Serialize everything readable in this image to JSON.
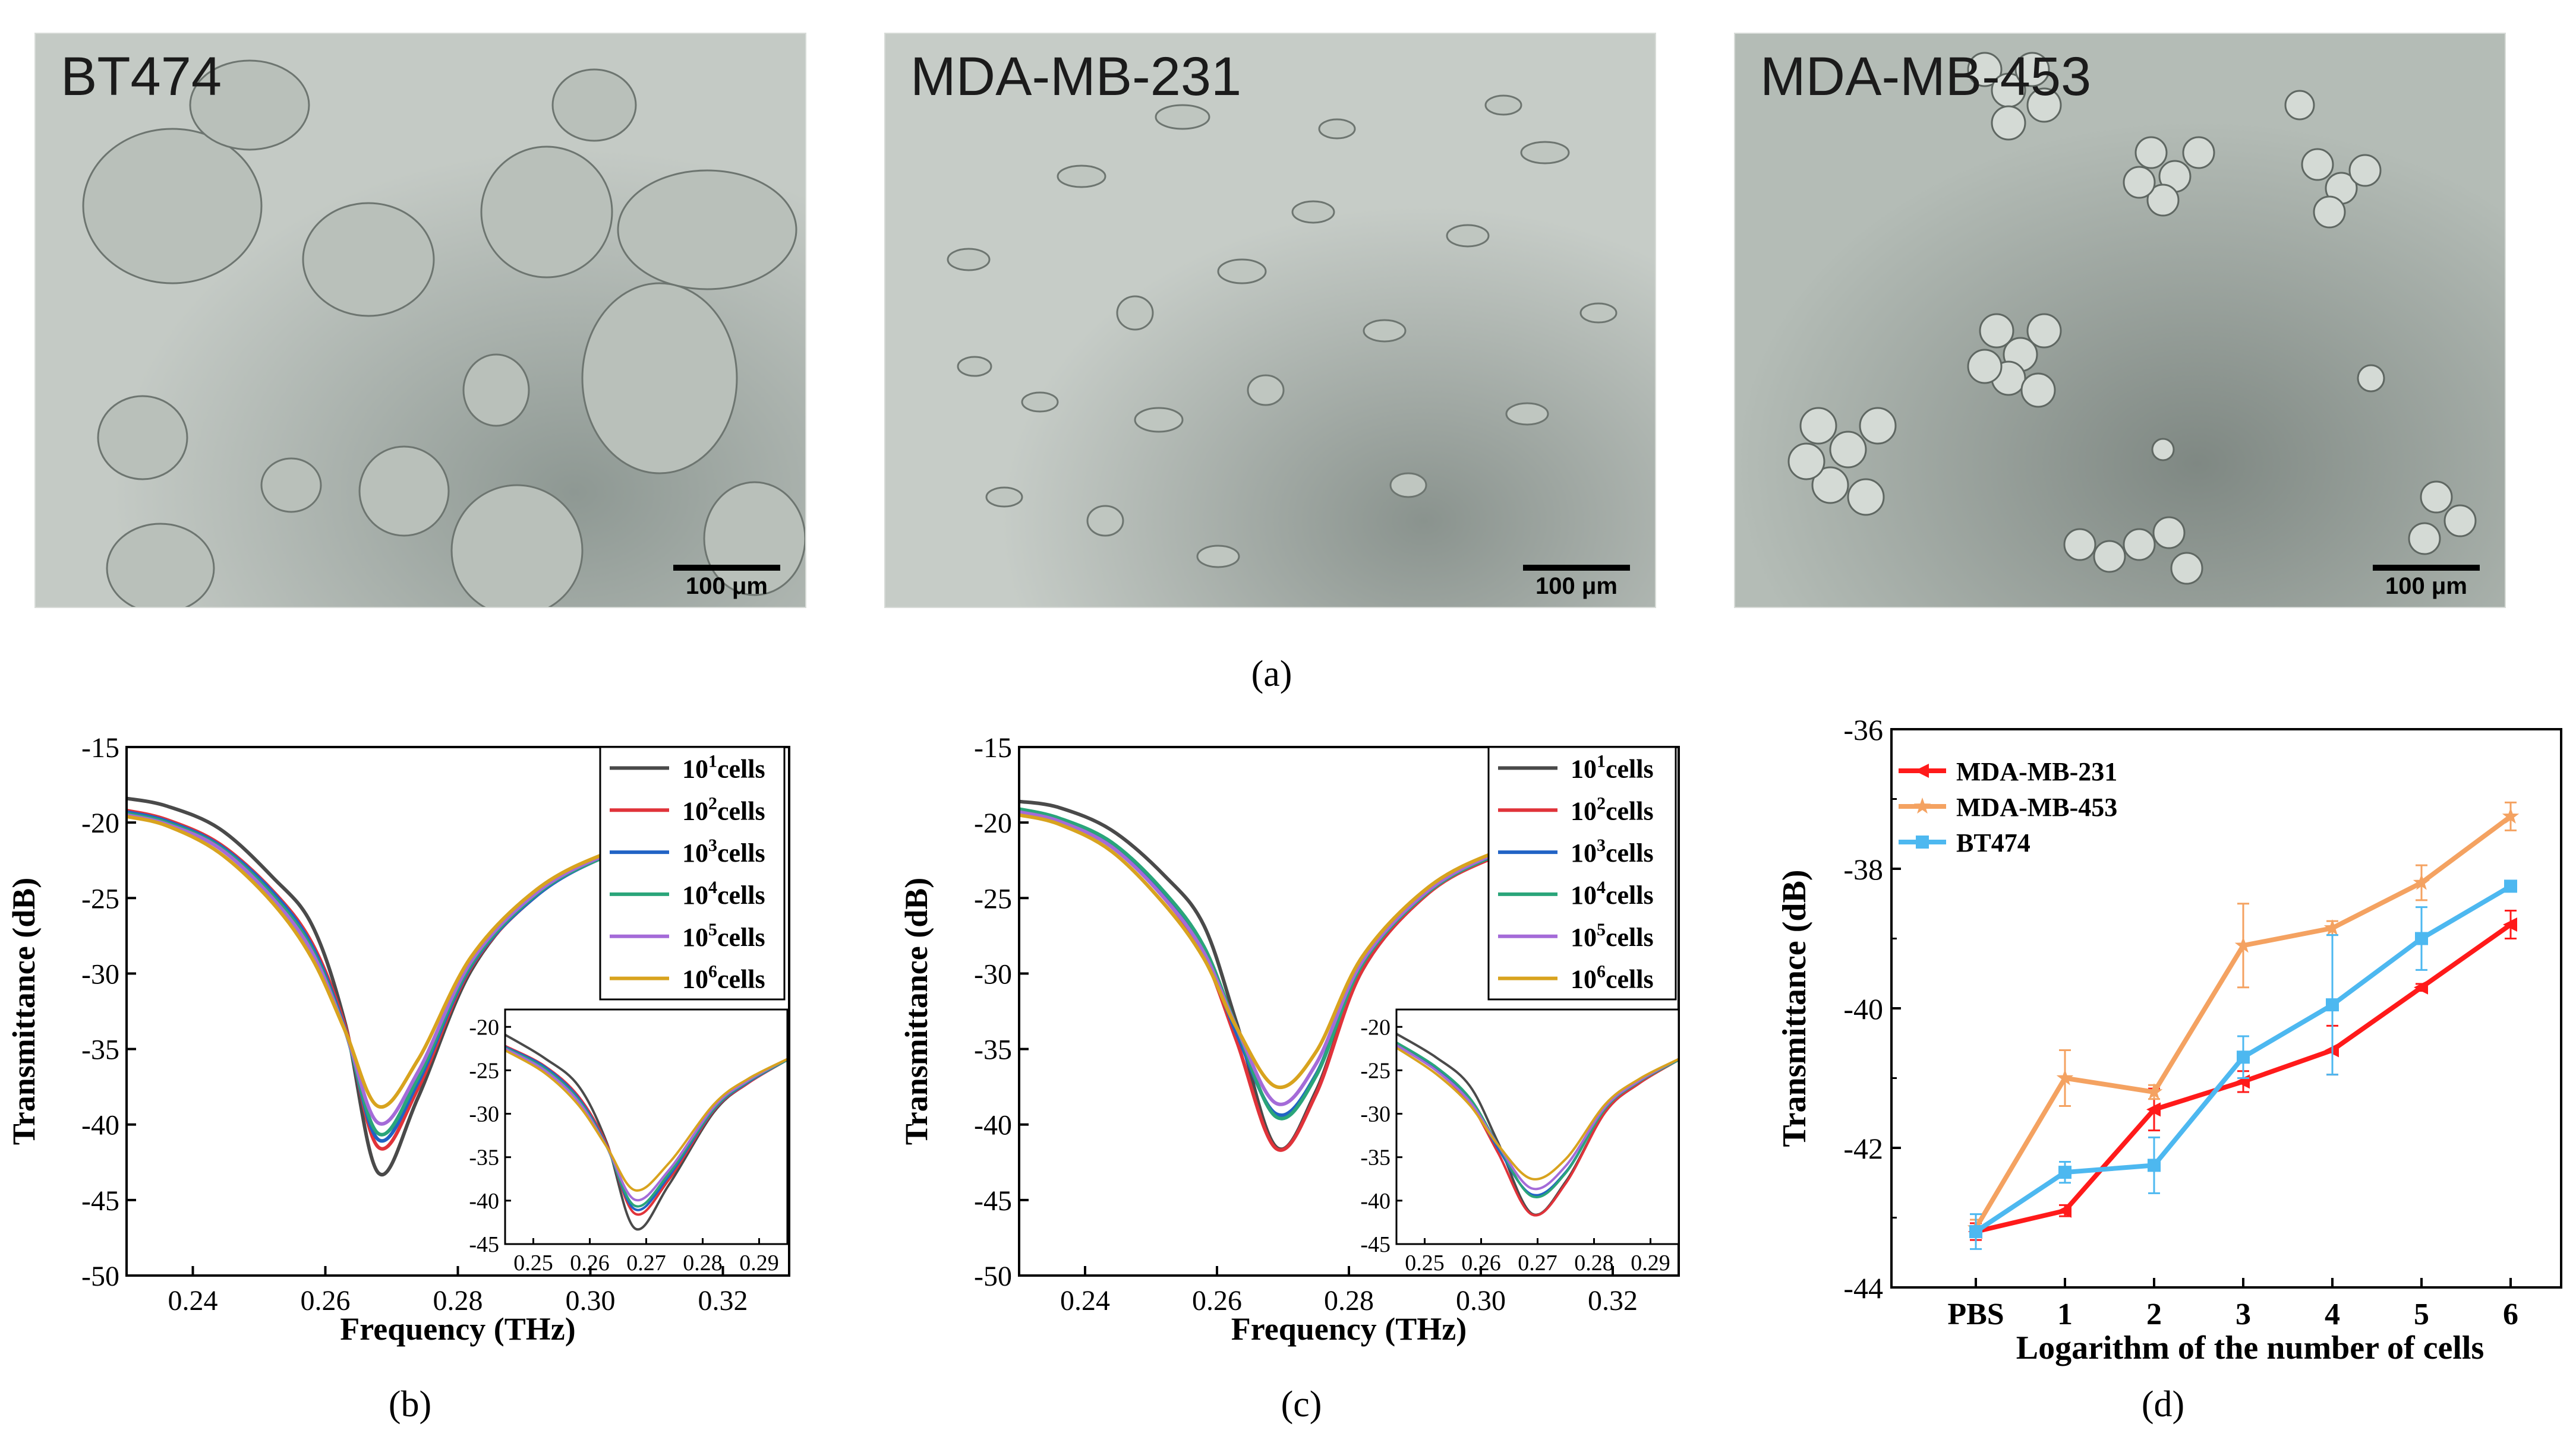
{
  "figure_labels": {
    "a": "(a)",
    "b": "(b)",
    "c": "(c)",
    "d": "(d)"
  },
  "photos": [
    {
      "title": "BT474",
      "scale_label": "100 μm"
    },
    {
      "title": "MDA-MB-231",
      "scale_label": "100 μm"
    },
    {
      "title": "MDA-MB-453",
      "scale_label": "100 μm"
    }
  ],
  "colors": {
    "c1": "#4a4a4a",
    "c2": "#e0333a",
    "c3": "#2163c5",
    "c4": "#2aa57a",
    "c5": "#a46bd8",
    "c6": "#d8a31e",
    "mda231": "#ff1a1a",
    "mda453": "#f4a261",
    "bt474": "#4db8f0"
  },
  "chart_data": [
    {
      "id": "b",
      "type": "line",
      "xlabel": "Frequency (THz)",
      "ylabel": "Transmittance (dB)",
      "xlim": [
        0.23,
        0.33
      ],
      "ylim": [
        -50,
        -15
      ],
      "xticks": [
        "0.24",
        "0.26",
        "0.28",
        "0.30",
        "0.32"
      ],
      "xtick_values": [
        0.24,
        0.26,
        0.28,
        0.3,
        0.32
      ],
      "yticks": [
        "-15",
        "-20",
        "-25",
        "-30",
        "-35",
        "-40",
        "-45",
        "-50"
      ],
      "ytick_values": [
        -15,
        -20,
        -25,
        -30,
        -35,
        -40,
        -45,
        -50
      ],
      "legend": [
        "10",
        "10",
        "10",
        "10",
        "10",
        "10"
      ],
      "legend_exp": [
        "1",
        "2",
        "3",
        "4",
        "5",
        "6"
      ],
      "legend_suffix": "cells",
      "x": [
        0.23,
        0.236,
        0.244,
        0.252,
        0.258,
        0.263,
        0.268,
        0.274,
        0.282,
        0.292,
        0.302,
        0.31
      ],
      "series": [
        {
          "name": "10^1 cells",
          "values": [
            -18.4,
            -18.9,
            -20.4,
            -23.6,
            -26.8,
            -33.3,
            -43.2,
            -38.2,
            -29.8,
            -24.6,
            -22.2,
            -21.2
          ]
        },
        {
          "name": "10^2 cells",
          "values": [
            -19.2,
            -19.8,
            -21.4,
            -24.5,
            -28.0,
            -33.5,
            -41.5,
            -37.6,
            -29.6,
            -24.8,
            -22.3,
            -21.4
          ]
        },
        {
          "name": "10^3 cells",
          "values": [
            -19.3,
            -19.9,
            -21.5,
            -24.6,
            -28.2,
            -33.7,
            -41.0,
            -37.2,
            -29.5,
            -24.8,
            -22.3,
            -21.4
          ]
        },
        {
          "name": "10^4 cells",
          "values": [
            -19.4,
            -20.0,
            -21.6,
            -24.8,
            -28.4,
            -33.8,
            -40.6,
            -36.9,
            -29.4,
            -24.7,
            -22.3,
            -21.4
          ]
        },
        {
          "name": "10^5 cells",
          "values": [
            -19.5,
            -20.1,
            -21.7,
            -25.0,
            -28.6,
            -33.8,
            -39.9,
            -36.5,
            -29.2,
            -24.6,
            -22.2,
            -21.3
          ]
        },
        {
          "name": "10^6 cells",
          "values": [
            -19.6,
            -20.2,
            -22.0,
            -25.3,
            -29.0,
            -33.8,
            -38.8,
            -35.7,
            -28.9,
            -24.4,
            -22.1,
            -21.3
          ]
        }
      ],
      "inset": {
        "xlim": [
          0.245,
          0.295
        ],
        "ylim": [
          -45,
          -18
        ],
        "xticks": [
          "0.25",
          "0.26",
          "0.27",
          "0.28",
          "0.29"
        ],
        "xtick_values": [
          0.25,
          0.26,
          0.27,
          0.28,
          0.29
        ],
        "yticks": [
          "-20",
          "-25",
          "-30",
          "-35",
          "-40",
          "-45"
        ],
        "ytick_values": [
          -20,
          -25,
          -30,
          -35,
          -40,
          -45
        ],
        "x": [
          0.245,
          0.252,
          0.258,
          0.263,
          0.268,
          0.274,
          0.282,
          0.288,
          0.295
        ],
        "series": [
          {
            "values": [
              -20.9,
              -23.6,
              -26.8,
              -33.3,
              -43.2,
              -38.2,
              -29.8,
              -26.5,
              -23.8
            ]
          },
          {
            "values": [
              -22.2,
              -24.5,
              -28.0,
              -33.5,
              -41.5,
              -37.6,
              -29.6,
              -26.5,
              -23.8
            ]
          },
          {
            "values": [
              -22.3,
              -24.6,
              -28.2,
              -33.7,
              -41.0,
              -37.2,
              -29.5,
              -26.4,
              -23.8
            ]
          },
          {
            "values": [
              -22.4,
              -24.8,
              -28.4,
              -33.8,
              -40.6,
              -36.9,
              -29.4,
              -26.3,
              -23.8
            ]
          },
          {
            "values": [
              -22.5,
              -25.0,
              -28.6,
              -33.8,
              -39.9,
              -36.5,
              -29.2,
              -26.2,
              -23.7
            ]
          },
          {
            "values": [
              -22.7,
              -25.3,
              -29.0,
              -33.8,
              -38.8,
              -35.7,
              -28.9,
              -26.0,
              -23.7
            ]
          }
        ]
      }
    },
    {
      "id": "c",
      "type": "line",
      "xlabel": "Frequency (THz)",
      "ylabel": "Transmittance (dB)",
      "xlim": [
        0.23,
        0.33
      ],
      "ylim": [
        -50,
        -15
      ],
      "xticks": [
        "0.24",
        "0.26",
        "0.28",
        "0.30",
        "0.32"
      ],
      "xtick_values": [
        0.24,
        0.26,
        0.28,
        0.3,
        0.32
      ],
      "yticks": [
        "-15",
        "-20",
        "-25",
        "-30",
        "-35",
        "-40",
        "-45",
        "-50"
      ],
      "ytick_values": [
        -15,
        -20,
        -25,
        -30,
        -35,
        -40,
        -45,
        -50
      ],
      "legend": [
        "10",
        "10",
        "10",
        "10",
        "10",
        "10"
      ],
      "legend_exp": [
        "1",
        "2",
        "3",
        "4",
        "5",
        "6"
      ],
      "legend_suffix": "cells",
      "x": [
        0.23,
        0.236,
        0.244,
        0.252,
        0.258,
        0.263,
        0.269,
        0.275,
        0.282,
        0.292,
        0.302,
        0.31
      ],
      "series": [
        {
          "name": "10^1 cells",
          "values": [
            -18.6,
            -19.0,
            -20.5,
            -23.5,
            -26.8,
            -33.3,
            -41.5,
            -37.8,
            -29.8,
            -24.6,
            -22.2,
            -21.2
          ]
        },
        {
          "name": "10^2 cells",
          "values": [
            -19.3,
            -19.9,
            -21.6,
            -25.0,
            -28.8,
            -34.5,
            -41.6,
            -38.0,
            -29.8,
            -24.7,
            -22.3,
            -21.3
          ]
        },
        {
          "name": "10^3 cells",
          "values": [
            -19.2,
            -19.8,
            -21.5,
            -24.9,
            -28.5,
            -34.0,
            -39.3,
            -36.7,
            -29.4,
            -24.6,
            -22.2,
            -21.3
          ]
        },
        {
          "name": "10^4 cells",
          "values": [
            -19.1,
            -19.7,
            -21.3,
            -24.6,
            -28.2,
            -33.6,
            -39.5,
            -36.8,
            -29.4,
            -24.6,
            -22.2,
            -21.3
          ]
        },
        {
          "name": "10^5 cells",
          "values": [
            -19.3,
            -19.9,
            -21.6,
            -25.0,
            -28.6,
            -33.6,
            -38.6,
            -36.0,
            -29.2,
            -24.5,
            -22.1,
            -21.2
          ]
        },
        {
          "name": "10^6 cells",
          "values": [
            -19.5,
            -20.1,
            -21.9,
            -25.4,
            -29.0,
            -33.6,
            -37.5,
            -35.2,
            -28.9,
            -24.3,
            -22.0,
            -21.2
          ]
        }
      ],
      "inset": {
        "xlim": [
          0.245,
          0.295
        ],
        "ylim": [
          -45,
          -18
        ],
        "xticks": [
          "0.25",
          "0.26",
          "0.27",
          "0.28",
          "0.29"
        ],
        "xtick_values": [
          0.25,
          0.26,
          0.27,
          0.28,
          0.29
        ],
        "yticks": [
          "-20",
          "-25",
          "-30",
          "-35",
          "-40",
          "-45"
        ],
        "ytick_values": [
          -20,
          -25,
          -30,
          -35,
          -40,
          -45
        ],
        "x": [
          0.245,
          0.252,
          0.258,
          0.263,
          0.269,
          0.275,
          0.282,
          0.288,
          0.295
        ],
        "series": [
          {
            "values": [
              -20.8,
              -23.5,
              -26.8,
              -33.3,
              -41.5,
              -37.8,
              -29.8,
              -26.5,
              -23.8
            ]
          },
          {
            "values": [
              -22.1,
              -25.0,
              -28.8,
              -34.5,
              -41.6,
              -38.0,
              -29.8,
              -26.5,
              -23.8
            ]
          },
          {
            "values": [
              -22.0,
              -24.9,
              -28.5,
              -34.0,
              -39.3,
              -36.7,
              -29.4,
              -26.3,
              -23.8
            ]
          },
          {
            "values": [
              -21.8,
              -24.6,
              -28.2,
              -33.6,
              -39.5,
              -36.8,
              -29.4,
              -26.3,
              -23.8
            ]
          },
          {
            "values": [
              -22.1,
              -25.0,
              -28.6,
              -33.6,
              -38.6,
              -36.0,
              -29.2,
              -26.2,
              -23.7
            ]
          },
          {
            "values": [
              -22.4,
              -25.4,
              -29.0,
              -33.6,
              -37.5,
              -35.2,
              -28.9,
              -26.0,
              -23.7
            ]
          }
        ]
      }
    },
    {
      "id": "d",
      "type": "line",
      "xlabel": "Logarithm of the number of cells",
      "ylabel": "Transmittance (dB)",
      "categories": [
        "PBS",
        "1",
        "2",
        "3",
        "4",
        "5",
        "6"
      ],
      "ylim": [
        -44,
        -36
      ],
      "yticks": [
        "-36",
        "-38",
        "-40",
        "-42",
        "-44"
      ],
      "ytick_values": [
        -36,
        -38,
        -40,
        -42,
        -44
      ],
      "series": [
        {
          "name": "MDA-MB-231",
          "marker": "triangle-left",
          "values": [
            -43.2,
            -42.9,
            -41.45,
            -41.05,
            -40.6,
            -39.7,
            -38.8
          ],
          "errors": [
            0.12,
            0.08,
            0.3,
            0.15,
            0.35,
            0.05,
            0.2
          ]
        },
        {
          "name": "MDA-MB-453",
          "marker": "star",
          "values": [
            -43.15,
            -41.0,
            -41.2,
            -39.1,
            -38.85,
            -38.2,
            -37.25
          ],
          "errors": [
            0.12,
            0.4,
            0.1,
            0.6,
            0.1,
            0.25,
            0.2
          ]
        },
        {
          "name": "BT474",
          "marker": "square",
          "values": [
            -43.2,
            -42.35,
            -42.25,
            -40.7,
            -39.95,
            -39.0,
            -38.25
          ],
          "errors": [
            0.25,
            0.15,
            0.4,
            0.3,
            1.0,
            0.45,
            0.03
          ]
        }
      ]
    }
  ]
}
